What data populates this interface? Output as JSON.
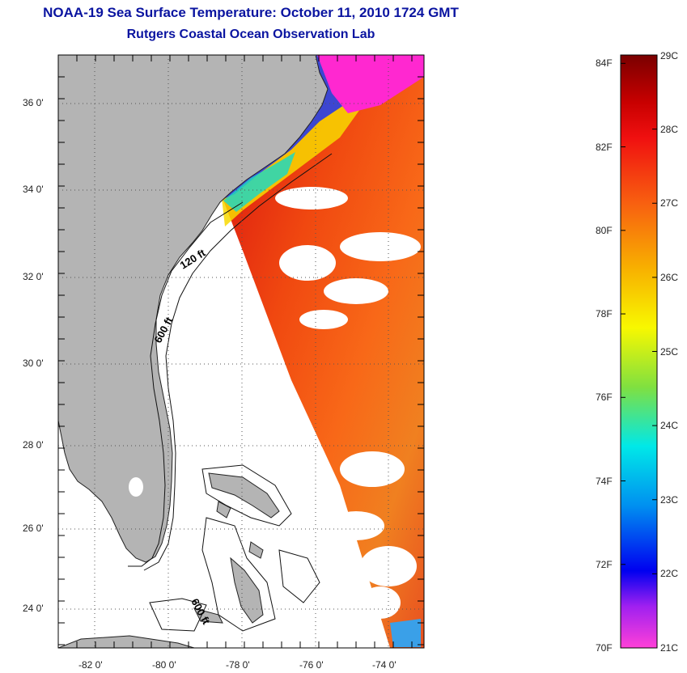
{
  "title": "NOAA-19 Sea Surface Temperature:  October 11, 2010 1724 GMT",
  "subtitle": "Rutgers Coastal Ocean Observation Lab",
  "map": {
    "lon_ticks": [
      "-82 0'",
      "-80 0'",
      "-78 0'",
      "-76 0'",
      "-74 0'"
    ],
    "lat_ticks": [
      "36 0'",
      "34 0'",
      "32 0'",
      "30 0'",
      "28 0'",
      "26 0'",
      "24 0'"
    ],
    "contour_labels": [
      "120 ft",
      "600 ft",
      "600 ft"
    ],
    "colors": {
      "land": "#b4b4b4",
      "ocean_nodata": "#ffffff"
    }
  },
  "colorbar": {
    "fahrenheit": [
      "84F",
      "82F",
      "80F",
      "78F",
      "76F",
      "74F",
      "72F",
      "70F"
    ],
    "celsius": [
      "29C",
      "28C",
      "27C",
      "26C",
      "25C",
      "24C",
      "23C",
      "22C",
      "21C"
    ],
    "range_c": [
      21,
      29
    ],
    "range_f": [
      70,
      84.2
    ]
  }
}
